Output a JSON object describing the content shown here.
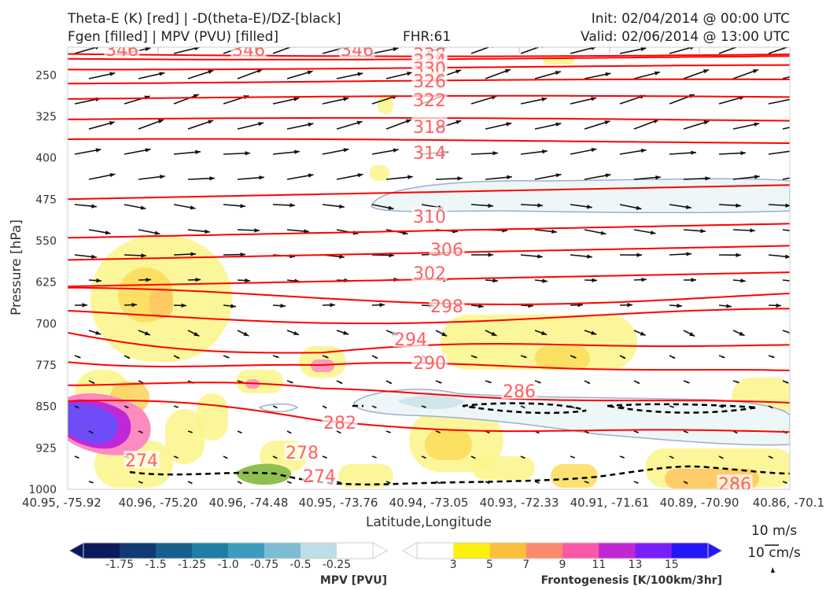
{
  "header": {
    "title_left_1": "Theta-E (K) [red] | -D(theta-E)/DZ-[black]",
    "title_left_2": "Fgen [filled] | MPV (PVU) [filled]",
    "fhr": "FHR:61",
    "init": "Init: 02/04/2014 @ 00:00 UTC",
    "valid": "Valid: 02/06/2014 @ 13:00 UTC"
  },
  "colors": {
    "theta_e": "#ff0000",
    "theta_e_label": "#ff6060",
    "wind_arrows": "#111111",
    "gradient_contour": "#000000",
    "mpv_outline": "#a0acd0"
  },
  "chart_data": {
    "type": "heatmap",
    "subtype": "vertical cross-section",
    "xlabel": "Latitude,Longitude",
    "ylabel": "Pressure [hPa]",
    "x_ticks": [
      "40.95, -75.92",
      "40.96, -75.20",
      "40.96, -74.48",
      "40.95, -73.76",
      "40.94, -73.05",
      "40.93, -72.33",
      "40.91, -71.61",
      "40.89, -70.90",
      "40.86, -70.1"
    ],
    "y_ticks": [
      250,
      325,
      400,
      475,
      550,
      625,
      700,
      775,
      850,
      925,
      1000
    ],
    "ylim": [
      1000,
      200
    ],
    "y_axis": "pressure (inverted)",
    "theta_e_labels": [
      346,
      346,
      346,
      338,
      334,
      330,
      326,
      322,
      318,
      314,
      310,
      306,
      302,
      298,
      294,
      290,
      286,
      282,
      278,
      274,
      274,
      286
    ],
    "theta_e_levels": [
      {
        "k": 338,
        "p": 212
      },
      {
        "k": 334,
        "p": 218
      },
      {
        "k": 330,
        "p": 236
      },
      {
        "k": 326,
        "p": 262
      },
      {
        "k": 322,
        "p": 292
      },
      {
        "k": 318,
        "p": 332
      },
      {
        "k": 314,
        "p": 370
      },
      {
        "k": 310,
        "p": 462
      },
      {
        "k": 306,
        "p": 532
      },
      {
        "k": 302,
        "p": 572
      },
      {
        "k": 298,
        "p": 620
      },
      {
        "k": 294,
        "p": 665
      },
      {
        "k": 290,
        "p": 700
      },
      {
        "k": 286,
        "p": 760
      },
      {
        "k": 282,
        "p": 800
      },
      {
        "k": 278,
        "p": 850
      },
      {
        "k": 274,
        "p": 900
      }
    ],
    "wind_scale": {
      "horizontal": "10 m/s",
      "vertical": "10 cm/s"
    },
    "colorbars": [
      {
        "label": "MPV [PVU]",
        "ticks": [
          "-1.75",
          "-1.5",
          "-1.25",
          "-1.0",
          "-0.75",
          "-0.5",
          "-0.25"
        ],
        "colors": [
          "#0b1a5c",
          "#0f3a73",
          "#165e8c",
          "#1e7ea6",
          "#3c9cc0",
          "#7ebcd4",
          "#bfdde6",
          "#ffffff"
        ]
      },
      {
        "label": "Frontogenesis [K/100km/3hr]",
        "ticks": [
          "3",
          "5",
          "7",
          "9",
          "11",
          "13",
          "15"
        ],
        "colors": [
          "#ffffff",
          "#fcf10c",
          "#fcbf3c",
          "#fc8b6e",
          "#fc58a8",
          "#c028d6",
          "#7a1ef8",
          "#2418fa"
        ]
      }
    ]
  }
}
